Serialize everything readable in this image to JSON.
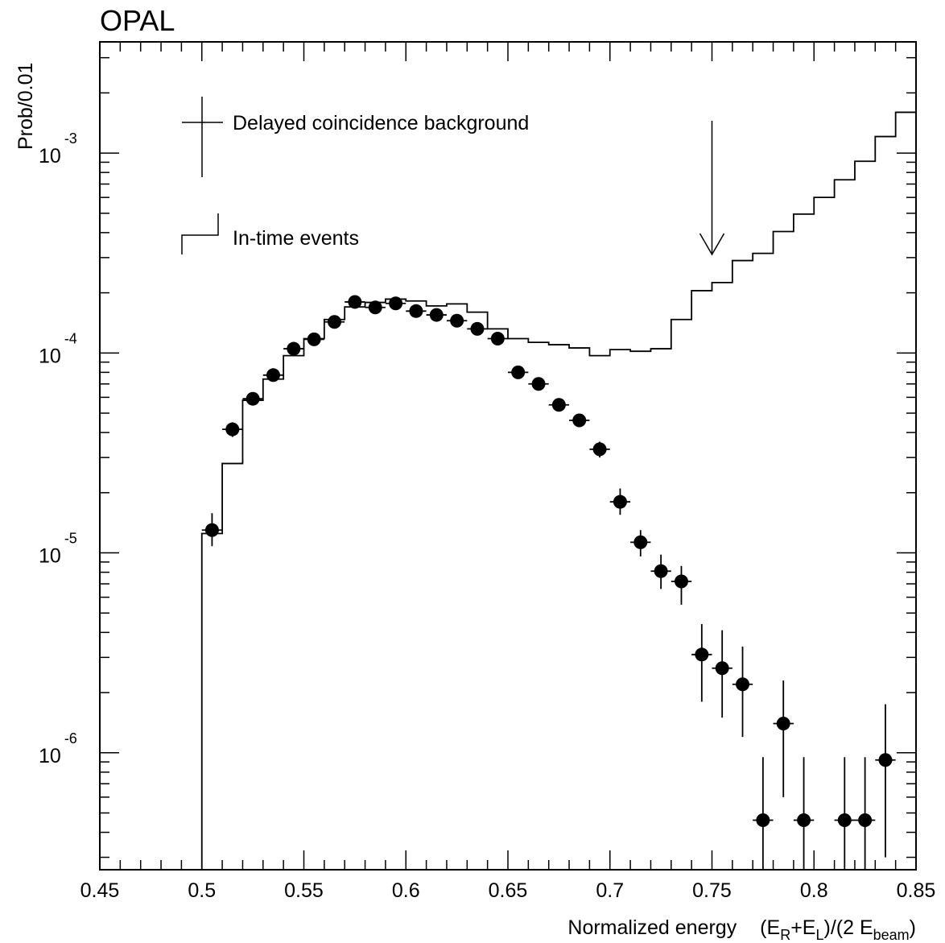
{
  "chart_data": {
    "type": "scatter",
    "title": "OPAL",
    "ylabel": "Prob/0.01",
    "xlabel": {
      "prefix": "Normalized energy",
      "formula": [
        "(",
        "E",
        "R",
        "+",
        "E",
        "L",
        ")/(2 ",
        "E",
        "beam",
        ")"
      ]
    },
    "x_scale": "linear",
    "y_scale": "log",
    "xlim": [
      0.45,
      0.85
    ],
    "ylim": [
      2.6e-07,
      0.0036
    ],
    "x_ticks": [
      "0.45",
      "0.5",
      "0.55",
      "0.6",
      "0.65",
      "0.7",
      "0.75",
      "0.8",
      "0.85"
    ],
    "y_ticks": [
      {
        "value": 1e-06,
        "base": "10",
        "exp": "-6"
      },
      {
        "value": 1e-05,
        "base": "10",
        "exp": "-5"
      },
      {
        "value": 0.0001,
        "base": "10",
        "exp": "-4"
      },
      {
        "value": 0.001,
        "base": "10",
        "exp": "-3"
      }
    ],
    "grid": false,
    "legend_position": "top-left",
    "legend": [
      {
        "label": "Delayed coincidence background",
        "marker": "cross"
      },
      {
        "label": "In-time events",
        "marker": "step"
      }
    ],
    "annotation": {
      "type": "arrow",
      "x": 0.75,
      "pointing": "down"
    },
    "series": [
      {
        "name": "In-time events",
        "type": "step",
        "bin_width": 0.01,
        "bins": [
          {
            "x": 0.505,
            "y": 1.25e-05
          },
          {
            "x": 0.515,
            "y": 2.8e-05
          },
          {
            "x": 0.525,
            "y": 5.8e-05
          },
          {
            "x": 0.535,
            "y": 7.4e-05
          },
          {
            "x": 0.545,
            "y": 9.7e-05
          },
          {
            "x": 0.555,
            "y": 0.000118
          },
          {
            "x": 0.565,
            "y": 0.000147
          },
          {
            "x": 0.575,
            "y": 0.00017
          },
          {
            "x": 0.585,
            "y": 0.000179
          },
          {
            "x": 0.595,
            "y": 0.000186
          },
          {
            "x": 0.605,
            "y": 0.000182
          },
          {
            "x": 0.615,
            "y": 0.000172
          },
          {
            "x": 0.625,
            "y": 0.000176
          },
          {
            "x": 0.635,
            "y": 0.00016
          },
          {
            "x": 0.645,
            "y": 0.000132
          },
          {
            "x": 0.655,
            "y": 0.000118
          },
          {
            "x": 0.665,
            "y": 0.000113
          },
          {
            "x": 0.675,
            "y": 0.00011
          },
          {
            "x": 0.685,
            "y": 0.000106
          },
          {
            "x": 0.695,
            "y": 9.7e-05
          },
          {
            "x": 0.705,
            "y": 0.000104
          },
          {
            "x": 0.715,
            "y": 0.000102
          },
          {
            "x": 0.725,
            "y": 0.000105
          },
          {
            "x": 0.735,
            "y": 0.000147
          },
          {
            "x": 0.745,
            "y": 0.000205
          },
          {
            "x": 0.755,
            "y": 0.000225
          },
          {
            "x": 0.765,
            "y": 0.00029
          },
          {
            "x": 0.775,
            "y": 0.000315
          },
          {
            "x": 0.785,
            "y": 0.000405
          },
          {
            "x": 0.795,
            "y": 0.000495
          },
          {
            "x": 0.805,
            "y": 0.0006
          },
          {
            "x": 0.815,
            "y": 0.000735
          },
          {
            "x": 0.825,
            "y": 0.00091
          },
          {
            "x": 0.835,
            "y": 0.00121
          },
          {
            "x": 0.845,
            "y": 0.0016
          }
        ]
      },
      {
        "name": "Delayed coincidence background",
        "type": "points",
        "x_error": 0.005,
        "points": [
          {
            "x": 0.505,
            "y": 1.3e-05,
            "ylo": 1.08e-05,
            "yhi": 1.58e-05
          },
          {
            "x": 0.515,
            "y": 4.15e-05,
            "ylo": 3.8e-05,
            "yhi": 4.5e-05
          },
          {
            "x": 0.525,
            "y": 5.9e-05,
            "ylo": 5.55e-05,
            "yhi": 6.3e-05
          },
          {
            "x": 0.535,
            "y": 7.75e-05,
            "ylo": 7.3e-05,
            "yhi": 8.2e-05
          },
          {
            "x": 0.545,
            "y": 0.000105,
            "ylo": 0.0001,
            "yhi": 0.000111
          },
          {
            "x": 0.555,
            "y": 0.000117,
            "ylo": 0.000111,
            "yhi": 0.000123
          },
          {
            "x": 0.565,
            "y": 0.000143,
            "ylo": 0.000137,
            "yhi": 0.00015
          },
          {
            "x": 0.575,
            "y": 0.00018,
            "ylo": 0.000173,
            "yhi": 0.000187
          },
          {
            "x": 0.585,
            "y": 0.000169,
            "ylo": 0.000162,
            "yhi": 0.000176
          },
          {
            "x": 0.595,
            "y": 0.000177,
            "ylo": 0.00017,
            "yhi": 0.000184
          },
          {
            "x": 0.605,
            "y": 0.000162,
            "ylo": 0.000155,
            "yhi": 0.000169
          },
          {
            "x": 0.615,
            "y": 0.000155,
            "ylo": 0.000148,
            "yhi": 0.000162
          },
          {
            "x": 0.625,
            "y": 0.000145,
            "ylo": 0.000139,
            "yhi": 0.000151
          },
          {
            "x": 0.635,
            "y": 0.000132,
            "ylo": 0.000126,
            "yhi": 0.000138
          },
          {
            "x": 0.645,
            "y": 0.000118,
            "ylo": 0.000112,
            "yhi": 0.000124
          },
          {
            "x": 0.655,
            "y": 8e-05,
            "ylo": 7.6e-05,
            "yhi": 8.4e-05
          },
          {
            "x": 0.665,
            "y": 7e-05,
            "ylo": 6.6e-05,
            "yhi": 7.4e-05
          },
          {
            "x": 0.675,
            "y": 5.5e-05,
            "ylo": 5.2e-05,
            "yhi": 5.8e-05
          },
          {
            "x": 0.685,
            "y": 4.6e-05,
            "ylo": 4.3e-05,
            "yhi": 4.9e-05
          },
          {
            "x": 0.695,
            "y": 3.3e-05,
            "ylo": 3e-05,
            "yhi": 3.6e-05
          },
          {
            "x": 0.705,
            "y": 1.8e-05,
            "ylo": 1.55e-05,
            "yhi": 2.1e-05
          },
          {
            "x": 0.715,
            "y": 1.13e-05,
            "ylo": 9.6e-06,
            "yhi": 1.3e-05
          },
          {
            "x": 0.725,
            "y": 8.1e-06,
            "ylo": 6.6e-06,
            "yhi": 9.8e-06
          },
          {
            "x": 0.735,
            "y": 7.2e-06,
            "ylo": 5.5e-06,
            "yhi": 8.6e-06
          },
          {
            "x": 0.745,
            "y": 3.1e-06,
            "ylo": 1.8e-06,
            "yhi": 4.4e-06
          },
          {
            "x": 0.755,
            "y": 2.65e-06,
            "ylo": 1.5e-06,
            "yhi": 4.1e-06
          },
          {
            "x": 0.765,
            "y": 2.2e-06,
            "ylo": 1.2e-06,
            "yhi": 3.4e-06
          },
          {
            "x": 0.775,
            "y": 4.6e-07,
            "ylo": 2.6e-07,
            "yhi": 9.5e-07
          },
          {
            "x": 0.785,
            "y": 1.4e-06,
            "ylo": 6e-07,
            "yhi": 2.3e-06
          },
          {
            "x": 0.795,
            "y": 4.6e-07,
            "ylo": 2.6e-07,
            "yhi": 9.5e-07
          },
          {
            "x": 0.815,
            "y": 4.6e-07,
            "ylo": 2.6e-07,
            "yhi": 9.5e-07
          },
          {
            "x": 0.825,
            "y": 4.6e-07,
            "ylo": 2.6e-07,
            "yhi": 9.5e-07
          },
          {
            "x": 0.835,
            "y": 9.2e-07,
            "ylo": 3e-07,
            "yhi": 1.75e-06
          }
        ]
      }
    ]
  }
}
